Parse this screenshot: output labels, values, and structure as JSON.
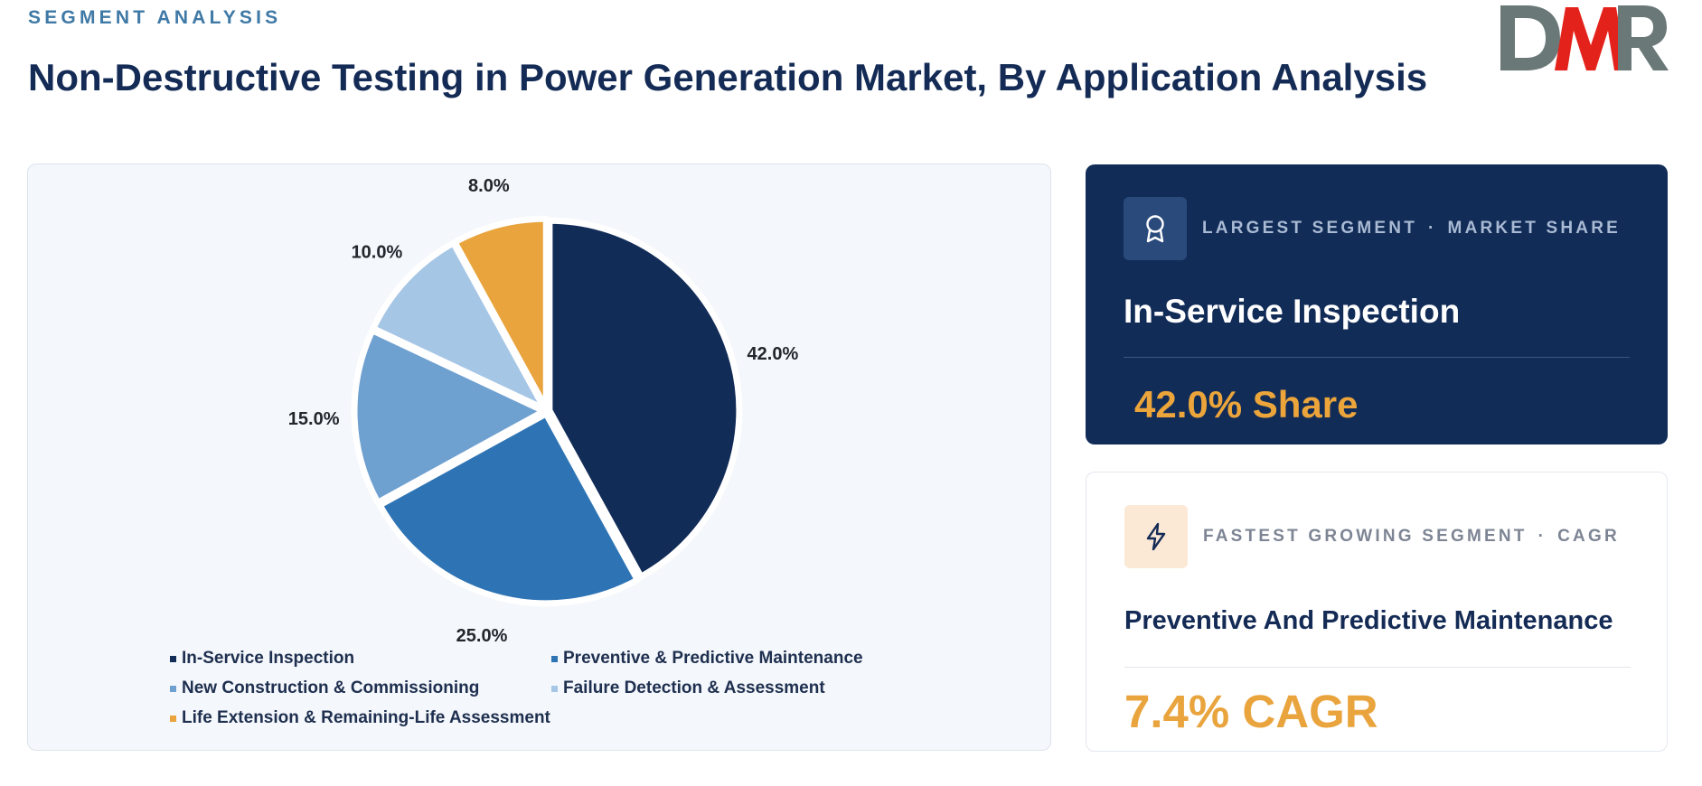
{
  "header": {
    "eyebrow": "SEGMENT ANALYSIS",
    "title": "Non-Destructive Testing in Power Generation Market, By Application Analysis",
    "logo_text": "DMR"
  },
  "chart_data": {
    "type": "pie",
    "title": "",
    "categories": [
      "In-Service Inspection",
      "Preventive & Predictive Maintenance",
      "New Construction & Commissioning",
      "Failure Detection & Assessment",
      "Life Extension & Remaining-Life Assessment"
    ],
    "values": [
      42.0,
      25.0,
      15.0,
      10.0,
      8.0
    ],
    "value_labels": [
      "42.0%",
      "25.0%",
      "15.0%",
      "10.0%",
      "8.0%"
    ],
    "colors": [
      "#122c58",
      "#2e74b5",
      "#6ea0d0",
      "#a6c6e6",
      "#e9a43d"
    ],
    "start_angle": "12 o'clock, clockwise",
    "legend_position": "bottom"
  },
  "cards": {
    "largest": {
      "icon": "award-icon",
      "kicker_left": "LARGEST SEGMENT",
      "kicker_sep": "·",
      "kicker_right": "MARKET SHARE",
      "name": "In-Service Inspection",
      "value": "42.0% Share"
    },
    "fastest": {
      "icon": "lightning-icon",
      "kicker_left": "FASTEST GROWING SEGMENT",
      "kicker_sep": "·",
      "kicker_right": "CAGR",
      "name": "Preventive And Predictive Maintenance",
      "value": "7.4% CAGR"
    }
  }
}
